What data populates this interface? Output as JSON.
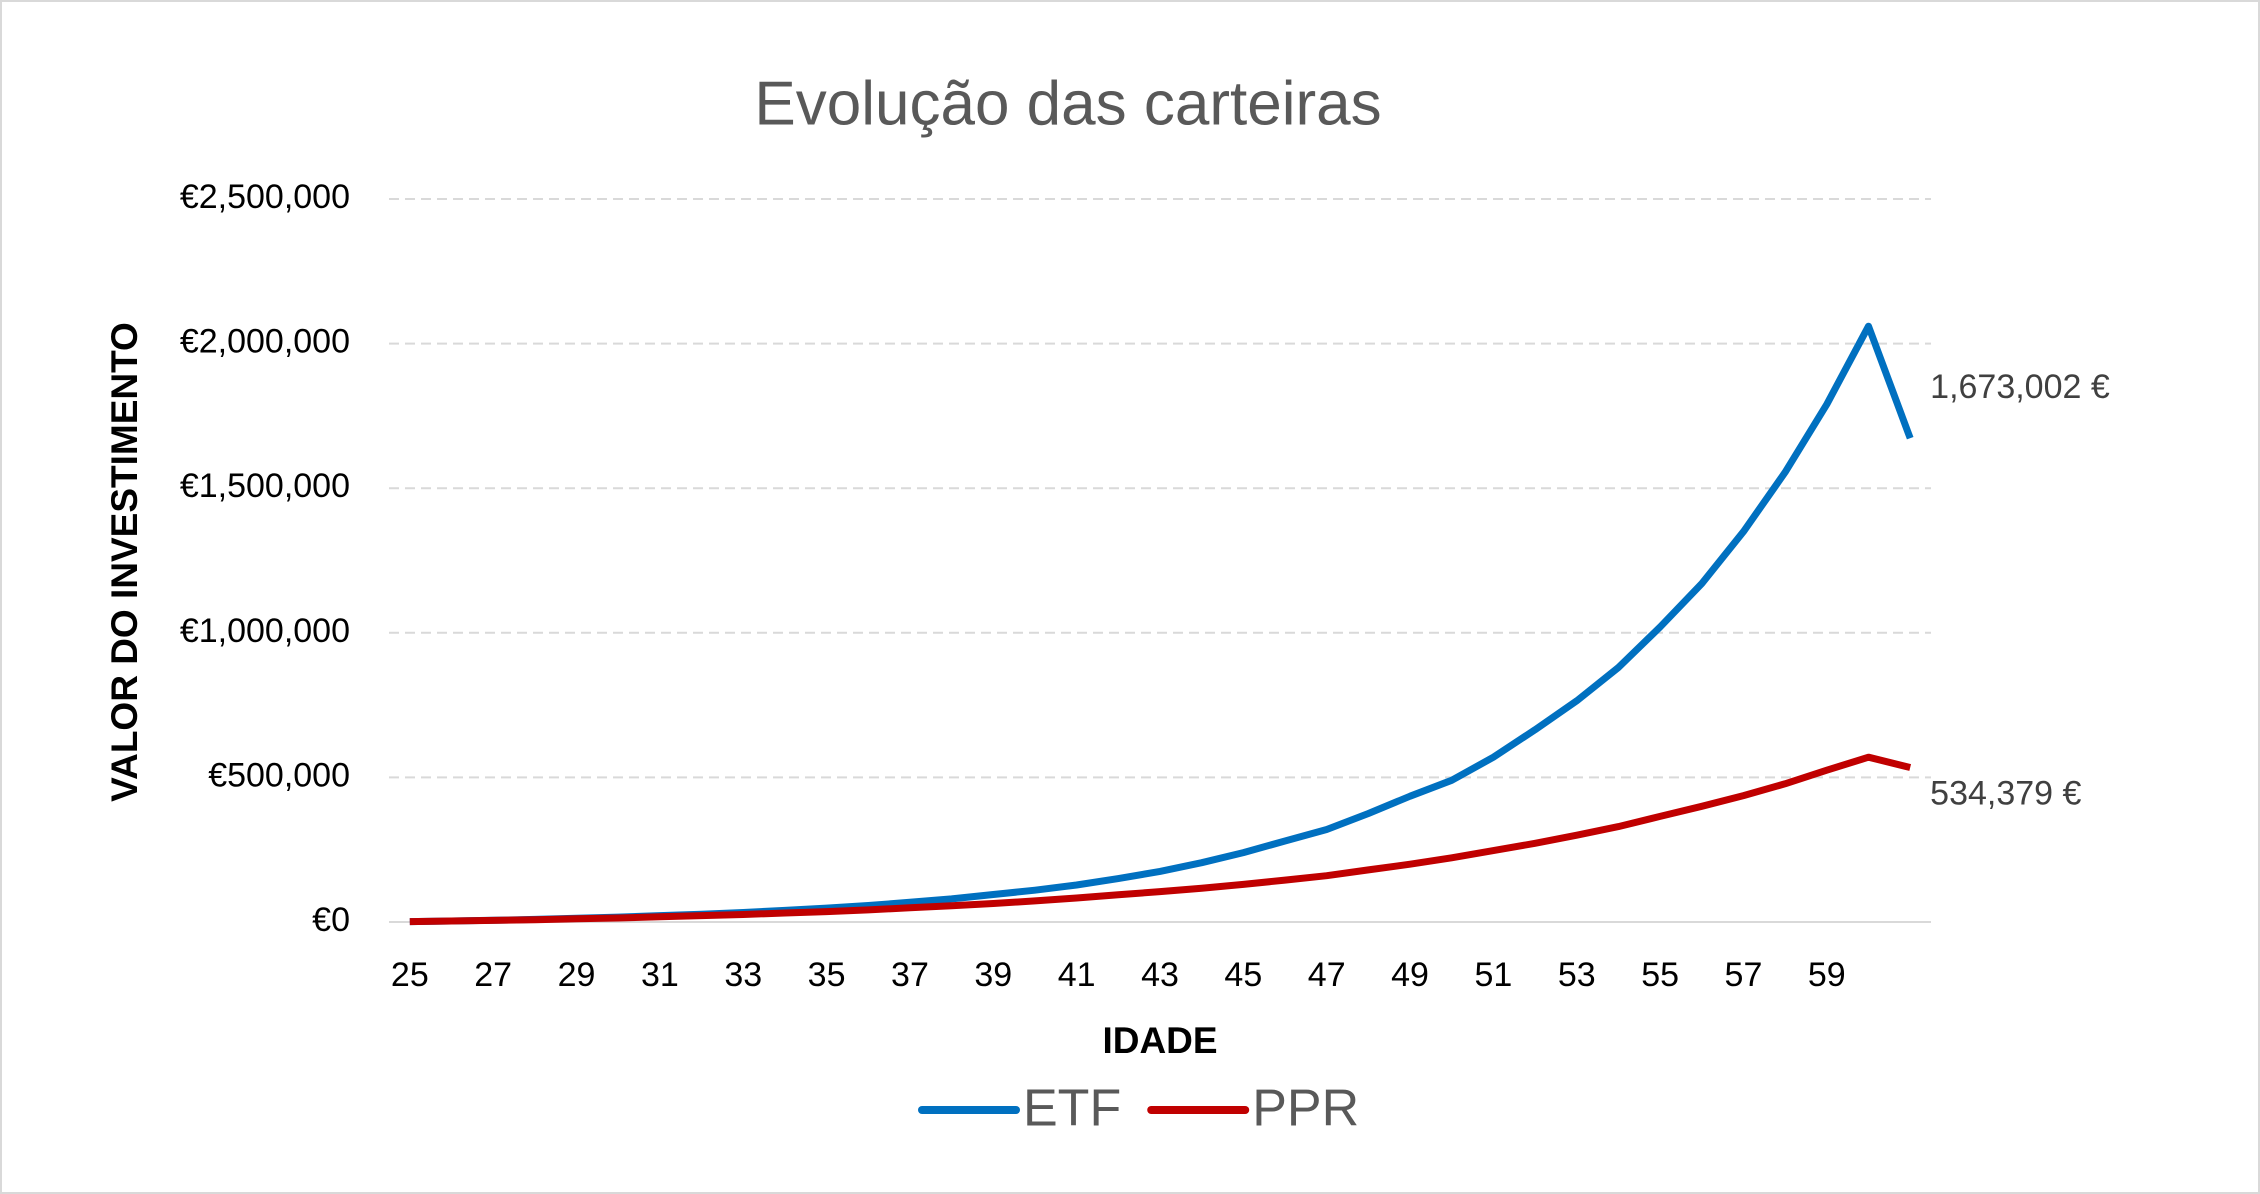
{
  "chart_data": {
    "type": "line",
    "title": "Evolução das carteiras",
    "x_label": "IDADE",
    "y_label": "VALOR DO INVESTIMENTO",
    "categories": [
      25,
      null,
      27,
      null,
      29,
      null,
      31,
      null,
      33,
      null,
      35,
      null,
      37,
      null,
      39,
      null,
      41,
      null,
      43,
      null,
      45,
      null,
      47,
      null,
      49,
      null,
      51,
      null,
      53,
      null,
      55,
      null,
      57,
      null,
      59,
      null,
      null
    ],
    "series": [
      {
        "name": "ETF",
        "color": "#0070c0",
        "values": [
          1500,
          3500,
          6000,
          9000,
          13000,
          17000,
          22000,
          27000,
          33000,
          40000,
          48000,
          57000,
          68000,
          80000,
          95000,
          110000,
          128000,
          150000,
          175000,
          205000,
          240000,
          280000,
          320000,
          375000,
          435000,
          490000,
          570000,
          665000,
          765000,
          880000,
          1020000,
          1170000,
          1350000,
          1555000,
          1790000,
          2060000,
          1673002
        ],
        "value_labels": [
          null,
          null,
          null,
          null,
          null,
          null,
          null,
          null,
          null,
          null,
          null,
          null,
          null,
          null,
          null,
          null,
          null,
          null,
          null,
          null,
          null,
          null,
          null,
          null,
          null,
          null,
          null,
          null,
          null,
          null,
          null,
          null,
          null,
          null,
          null,
          null,
          "1,673,002 €"
        ]
      },
      {
        "name": "PPR",
        "color": "#c00000",
        "values": [
          1500,
          3500,
          5500,
          8000,
          11000,
          14000,
          18000,
          22000,
          26000,
          31000,
          36000,
          42000,
          49000,
          56000,
          64000,
          73000,
          83000,
          94000,
          105000,
          117000,
          130000,
          145000,
          160000,
          180000,
          200000,
          222000,
          247000,
          272000,
          300000,
          330000,
          365000,
          400000,
          437000,
          478000,
          525000,
          570000,
          534379
        ],
        "value_labels": [
          null,
          null,
          null,
          null,
          null,
          null,
          null,
          null,
          null,
          null,
          null,
          null,
          null,
          null,
          null,
          null,
          null,
          null,
          null,
          null,
          null,
          null,
          null,
          null,
          null,
          null,
          null,
          null,
          null,
          null,
          null,
          null,
          null,
          null,
          null,
          null,
          "534,379 €"
        ]
      }
    ],
    "ylim": [
      0,
      2500000
    ],
    "yticks": [
      {
        "value": 0,
        "label": "€0"
      },
      {
        "value": 500000,
        "label": "€500,000"
      },
      {
        "value": 1000000,
        "label": "€1,000,000"
      },
      {
        "value": 1500000,
        "label": "€1,500,000"
      },
      {
        "value": 2000000,
        "label": "€2,000,000"
      },
      {
        "value": 2500000,
        "label": "€2,500,000"
      }
    ],
    "grid": true,
    "legend": "bottom"
  }
}
